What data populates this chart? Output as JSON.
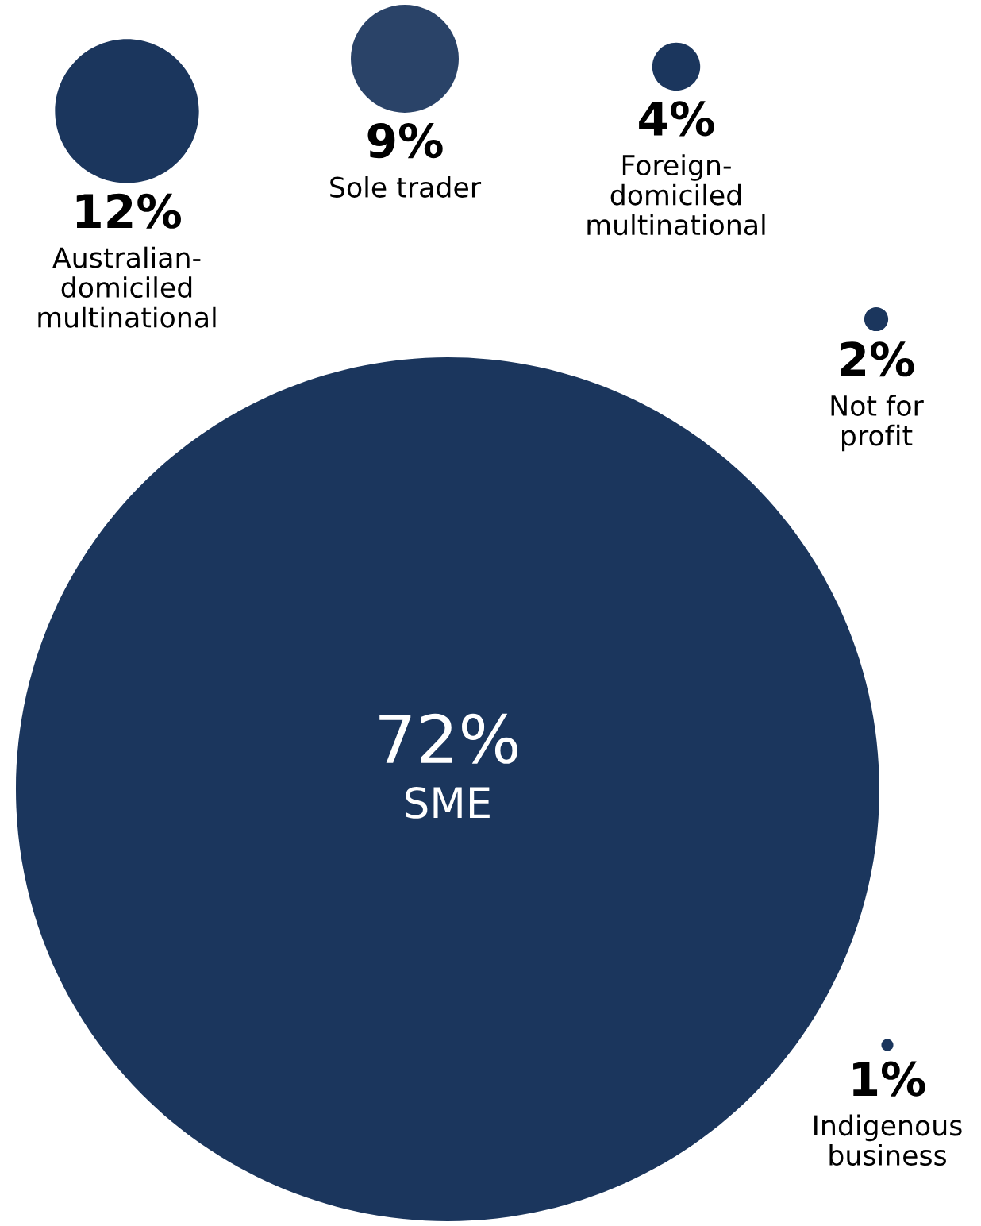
{
  "chart_data": {
    "type": "other",
    "categories": [
      "Australian-\ndomiciled\nmultinational",
      "Sole trader",
      "Foreign-\ndomiciled\nmultinational",
      "Not for\nprofit",
      "SME",
      "Indigenous\nbusiness"
    ],
    "values": [
      12,
      9,
      4,
      2,
      72,
      1
    ],
    "value_labels": [
      "12%",
      "9%",
      "4%",
      "2%",
      "72%",
      "1%"
    ],
    "colors": [
      "#1b365d",
      "#2a4368",
      "#1b365d",
      "#1b365d",
      "#1b365d",
      "#1b365d"
    ]
  }
}
